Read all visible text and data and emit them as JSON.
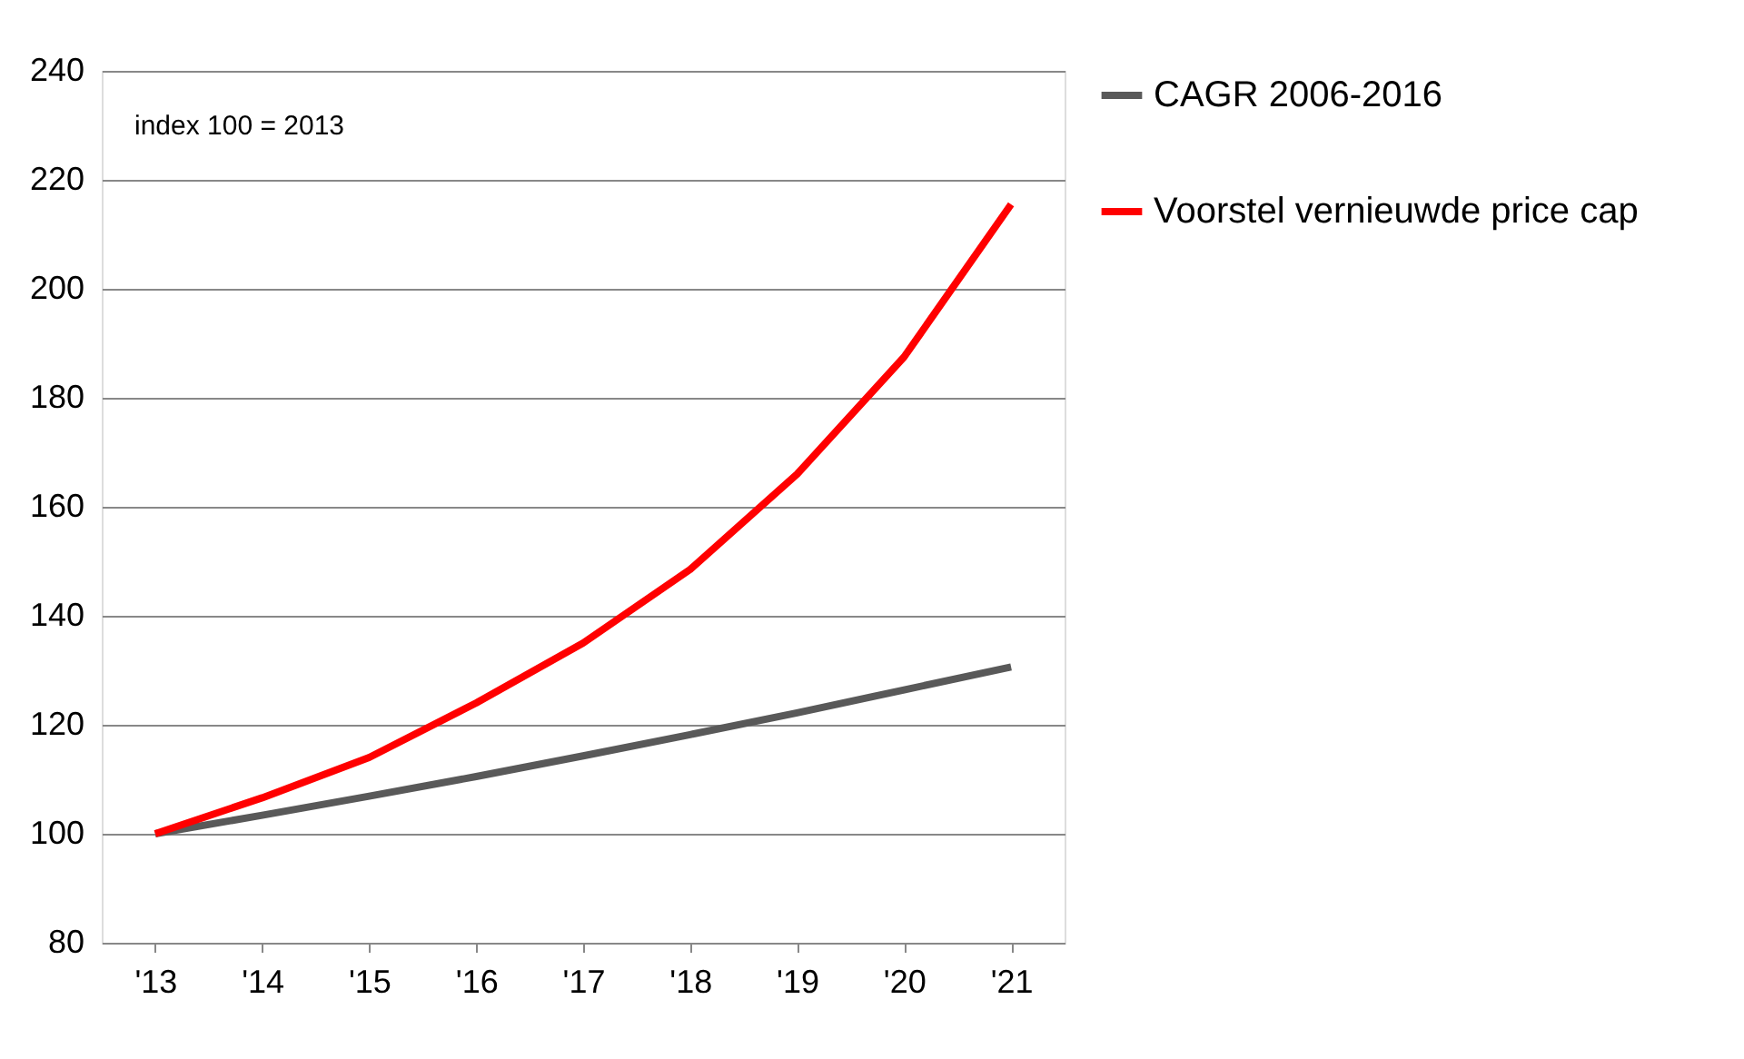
{
  "chart_data": {
    "type": "line",
    "categories": [
      "'13",
      "'14",
      "'15",
      "'16",
      "'17",
      "'18",
      "'19",
      "'20",
      "'21"
    ],
    "series": [
      {
        "name": "CAGR 2006-2016",
        "color": "#595959",
        "values": [
          100,
          103.4,
          106.9,
          110.5,
          114.3,
          118.2,
          122.2,
          126.4,
          130.6
        ]
      },
      {
        "name": "Voorstel vernieuwde price cap",
        "color": "#ff0000",
        "values": [
          100,
          106.6,
          114,
          124,
          135,
          148.5,
          166,
          187.5,
          215.5
        ]
      }
    ],
    "ylim": [
      80,
      240
    ],
    "yticks": [
      80,
      100,
      120,
      140,
      160,
      180,
      200,
      220,
      240
    ],
    "grid": "y",
    "legend": "right",
    "marker": "none",
    "line_style": "solid",
    "annotations": [
      "index 100 = 2013"
    ]
  }
}
